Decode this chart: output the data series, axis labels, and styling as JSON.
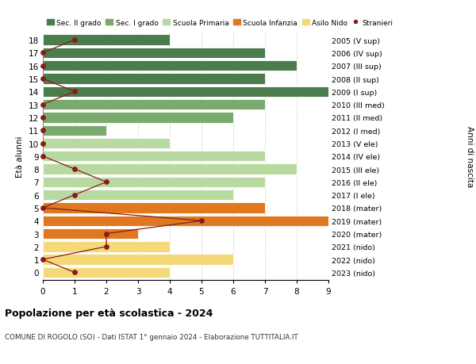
{
  "ages": [
    18,
    17,
    16,
    15,
    14,
    13,
    12,
    11,
    10,
    9,
    8,
    7,
    6,
    5,
    4,
    3,
    2,
    1,
    0
  ],
  "right_labels": [
    "2005 (V sup)",
    "2006 (IV sup)",
    "2007 (III sup)",
    "2008 (II sup)",
    "2009 (I sup)",
    "2010 (III med)",
    "2011 (II med)",
    "2012 (I med)",
    "2013 (V ele)",
    "2014 (IV ele)",
    "2015 (III ele)",
    "2016 (II ele)",
    "2017 (I ele)",
    "2018 (mater)",
    "2019 (mater)",
    "2020 (mater)",
    "2021 (nido)",
    "2022 (nido)",
    "2023 (nido)"
  ],
  "bar_values": [
    4,
    7,
    8,
    7,
    9,
    7,
    6,
    2,
    4,
    7,
    8,
    7,
    6,
    7,
    9,
    3,
    4,
    6,
    4
  ],
  "bar_colors": [
    "#4a7c4e",
    "#4a7c4e",
    "#4a7c4e",
    "#4a7c4e",
    "#4a7c4e",
    "#7aaa6e",
    "#7aaa6e",
    "#7aaa6e",
    "#b8d9a0",
    "#b8d9a0",
    "#b8d9a0",
    "#b8d9a0",
    "#b8d9a0",
    "#e07820",
    "#e07820",
    "#e07820",
    "#f5d87a",
    "#f5d87a",
    "#f5d87a"
  ],
  "stranieri_values": [
    1,
    0,
    0,
    0,
    1,
    0,
    0,
    0,
    0,
    0,
    1,
    2,
    1,
    0,
    5,
    2,
    2,
    0,
    1
  ],
  "legend_labels": [
    "Sec. II grado",
    "Sec. I grado",
    "Scuola Primaria",
    "Scuola Infanzia",
    "Asilo Nido",
    "Stranieri"
  ],
  "legend_colors": [
    "#4a7c4e",
    "#7aaa6e",
    "#b8d9a0",
    "#e07820",
    "#f5d87a",
    "#8b0000"
  ],
  "title": "Popolazione per età scolastica - 2024",
  "subtitle": "COMUNE DI ROGOLO (SO) - Dati ISTAT 1° gennaio 2024 - Elaborazione TUTTITALIA.IT",
  "ylabel_left": "Età alunni",
  "ylabel_right": "Anni di nascita",
  "xlim": [
    0,
    9
  ],
  "bar_height": 0.82,
  "background_color": "#ffffff",
  "grid_color": "#cccccc",
  "stranieri_line_color": "#8b1a1a",
  "stranieri_dot_color": "#8b1a1a"
}
